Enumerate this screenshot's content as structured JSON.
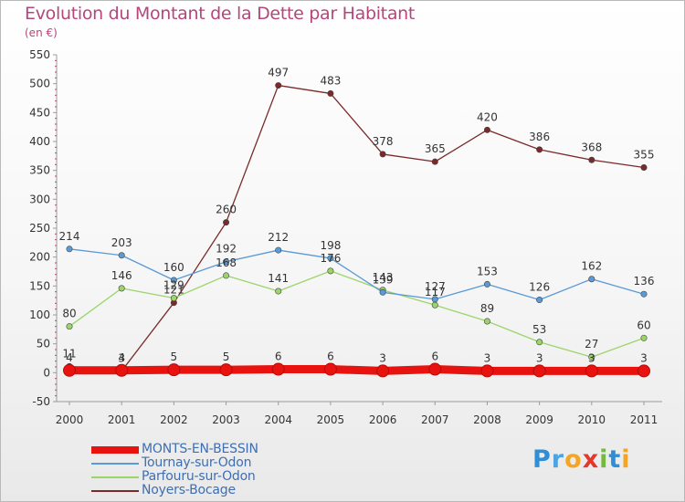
{
  "title": "Evolution du Montant de la Dette par Habitant",
  "subtitle": "(en €)",
  "logo_text": "Proxiti",
  "chart_data": {
    "type": "line",
    "title": "Evolution du Montant de la Dette par Habitant",
    "subtitle": "(en €)",
    "xlabel": "",
    "ylabel": "",
    "x": [
      "2000",
      "2001",
      "2002",
      "2003",
      "2004",
      "2005",
      "2006",
      "2007",
      "2008",
      "2009",
      "2010",
      "2011"
    ],
    "ylim": [
      -50,
      550
    ],
    "yticks": [
      -50,
      0,
      50,
      100,
      150,
      200,
      250,
      300,
      350,
      400,
      450,
      500,
      550
    ],
    "grid": false,
    "legend_position": "bottom-left",
    "series": [
      {
        "name": "MONTS-EN-BESSIN",
        "color": "#e8120e",
        "values": [
          4,
          4,
          5,
          5,
          6,
          6,
          3,
          6,
          3,
          3,
          3,
          3
        ],
        "labels": [
          "4",
          "4",
          "5",
          "5",
          "6",
          "6",
          "3",
          "6",
          "3",
          "3",
          "3",
          "3"
        ]
      },
      {
        "name": "Tournay-sur-Odon",
        "color": "#5a9ad6",
        "values": [
          214,
          203,
          160,
          192,
          212,
          198,
          139,
          127,
          153,
          126,
          162,
          136
        ],
        "labels": [
          "214",
          "203",
          "160",
          "192",
          "212",
          "198",
          "139",
          "127",
          "153",
          "126",
          "162",
          "136"
        ]
      },
      {
        "name": "Parfouru-sur-Odon",
        "color": "#9bd56a",
        "values": [
          80,
          146,
          129,
          168,
          141,
          176,
          143,
          117,
          89,
          53,
          27,
          60
        ],
        "labels": [
          "80",
          "146",
          "129",
          "168",
          "141",
          "176",
          "143",
          "117",
          "89",
          "53",
          "27",
          "60"
        ]
      },
      {
        "name": "Noyers-Bocage",
        "color": "#7a2a2a",
        "values": [
          11,
          3,
          121,
          260,
          497,
          483,
          378,
          365,
          420,
          386,
          368,
          355
        ],
        "labels": [
          "11",
          "3",
          "121",
          "260",
          "497",
          "483",
          "378",
          "365",
          "420",
          "386",
          "368",
          "355"
        ]
      }
    ]
  }
}
